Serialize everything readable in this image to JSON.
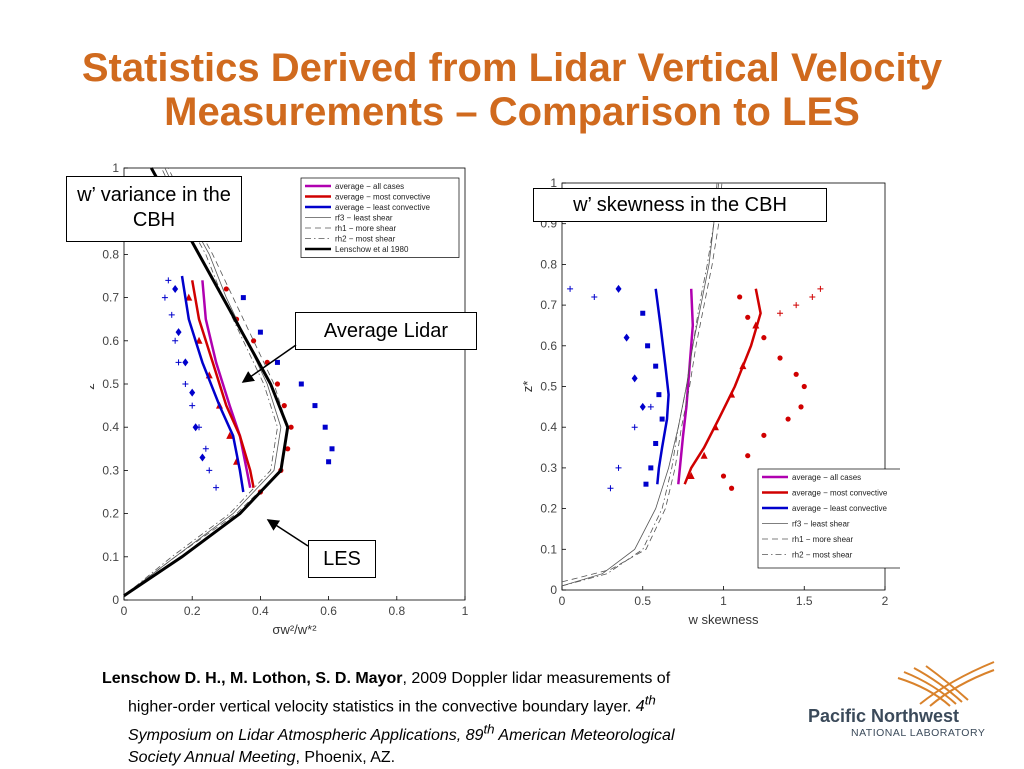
{
  "title": {
    "line1": "Statistics Derived from Lidar Vertical Velocity",
    "line2": "Measurements – Comparison to LES"
  },
  "callouts": {
    "variance": "w’ variance in the CBH",
    "skewness": "w’ skewness in the CBH",
    "avg_lidar": "Average Lidar",
    "les": "LES"
  },
  "reference": {
    "authors": "Lenschow D. H., M. Lothon, S. D. Mayor",
    "part1": ", 2009 Doppler lidar measurements of",
    "part2": "higher-order vertical velocity statistics in the convective boundary layer. ",
    "ordinal": "4",
    "ordinal_sup": "th",
    "part3": "Symposium on Lidar Atmospheric Applications, 89",
    "sup2": "th",
    "part4": " American Meteorological",
    "part5": "Society Annual Meeting",
    "part6": ", Phoenix, AZ."
  },
  "logo": {
    "line1": "Pacific Northwest",
    "line2": "NATIONAL LABORATORY"
  },
  "colors": {
    "title": "#D06A1E",
    "magenta": "#B000B0",
    "red": "#D00000",
    "blue": "#0000CC",
    "logo_orange": "#D9822B",
    "logo_text": "#3B4A5A"
  },
  "chart_data": [
    {
      "type": "line",
      "xlabel": "σw²/w*²",
      "ylabel": "z*",
      "xlim": [
        0,
        1
      ],
      "ylim": [
        0,
        1
      ],
      "xticks": [
        "0",
        "0.2",
        "0.4",
        "0.6",
        "0.8",
        "1"
      ],
      "yticks": [
        "0",
        "0.1",
        "0.2",
        "0.3",
        "0.4",
        "0.5",
        "0.6",
        "0.7",
        "0.8",
        "1"
      ],
      "legend_position": "top-right",
      "series": [
        {
          "name": "average − all cases",
          "style": "solid",
          "color": "#B000B0",
          "points": [
            [
              0.23,
              0.74
            ],
            [
              0.24,
              0.65
            ],
            [
              0.27,
              0.55
            ],
            [
              0.31,
              0.45
            ],
            [
              0.34,
              0.38
            ],
            [
              0.36,
              0.3
            ],
            [
              0.37,
              0.26
            ]
          ]
        },
        {
          "name": "average − most convective",
          "style": "solid",
          "color": "#D00000",
          "points": [
            [
              0.2,
              0.74
            ],
            [
              0.22,
              0.65
            ],
            [
              0.26,
              0.55
            ],
            [
              0.3,
              0.45
            ],
            [
              0.34,
              0.38
            ],
            [
              0.37,
              0.3
            ],
            [
              0.38,
              0.26
            ]
          ]
        },
        {
          "name": "average − least convective",
          "style": "solid",
          "color": "#0000CC",
          "points": [
            [
              0.17,
              0.75
            ],
            [
              0.19,
              0.65
            ],
            [
              0.23,
              0.55
            ],
            [
              0.28,
              0.45
            ],
            [
              0.32,
              0.38
            ],
            [
              0.34,
              0.3
            ],
            [
              0.35,
              0.25
            ]
          ]
        },
        {
          "name": "rf3 − least shear",
          "style": "thin",
          "color": "#555555",
          "points": [
            [
              0,
              0.01
            ],
            [
              0.15,
              0.1
            ],
            [
              0.32,
              0.2
            ],
            [
              0.44,
              0.3
            ],
            [
              0.46,
              0.4
            ],
            [
              0.42,
              0.5
            ],
            [
              0.36,
              0.6
            ],
            [
              0.3,
              0.7
            ],
            [
              0.25,
              0.8
            ],
            [
              0.18,
              0.9
            ],
            [
              0.12,
              1.0
            ]
          ]
        },
        {
          "name": "rh1 − more shear",
          "style": "dashed",
          "color": "#555555",
          "points": [
            [
              0,
              0.01
            ],
            [
              0.15,
              0.1
            ],
            [
              0.33,
              0.2
            ],
            [
              0.46,
              0.3
            ],
            [
              0.48,
              0.4
            ],
            [
              0.44,
              0.5
            ],
            [
              0.38,
              0.6
            ],
            [
              0.32,
              0.7
            ],
            [
              0.26,
              0.8
            ],
            [
              0.19,
              0.9
            ],
            [
              0.13,
              1.0
            ]
          ]
        },
        {
          "name": "rh2 − most shear",
          "style": "dashdot",
          "color": "#555555",
          "points": [
            [
              0,
              0.01
            ],
            [
              0.14,
              0.1
            ],
            [
              0.31,
              0.2
            ],
            [
              0.43,
              0.3
            ],
            [
              0.45,
              0.4
            ],
            [
              0.41,
              0.5
            ],
            [
              0.35,
              0.6
            ],
            [
              0.29,
              0.7
            ],
            [
              0.24,
              0.8
            ],
            [
              0.17,
              0.9
            ],
            [
              0.11,
              1.0
            ]
          ]
        },
        {
          "name": "Lenschow et al 1980",
          "style": "thick",
          "color": "#000000",
          "points": [
            [
              0,
              0.01
            ],
            [
              0.17,
              0.1
            ],
            [
              0.34,
              0.2
            ],
            [
              0.46,
              0.3
            ],
            [
              0.48,
              0.4
            ],
            [
              0.43,
              0.5
            ],
            [
              0.36,
              0.6
            ],
            [
              0.29,
              0.7
            ],
            [
              0.22,
              0.8
            ],
            [
              0.15,
              0.9
            ],
            [
              0.08,
              1.0
            ]
          ]
        }
      ],
      "scatter": [
        {
          "color": "#0000CC",
          "marker": "plus",
          "points": [
            [
              0.13,
              0.74
            ],
            [
              0.12,
              0.7
            ],
            [
              0.14,
              0.66
            ],
            [
              0.15,
              0.6
            ],
            [
              0.16,
              0.55
            ],
            [
              0.18,
              0.5
            ],
            [
              0.2,
              0.45
            ],
            [
              0.22,
              0.4
            ],
            [
              0.24,
              0.35
            ],
            [
              0.25,
              0.3
            ],
            [
              0.27,
              0.26
            ]
          ]
        },
        {
          "color": "#0000CC",
          "marker": "diamond",
          "points": [
            [
              0.15,
              0.72
            ],
            [
              0.16,
              0.62
            ],
            [
              0.18,
              0.55
            ],
            [
              0.2,
              0.48
            ],
            [
              0.21,
              0.4
            ],
            [
              0.23,
              0.33
            ]
          ]
        },
        {
          "color": "#0000CC",
          "marker": "square",
          "points": [
            [
              0.35,
              0.7
            ],
            [
              0.4,
              0.62
            ],
            [
              0.45,
              0.55
            ],
            [
              0.52,
              0.5
            ],
            [
              0.56,
              0.45
            ],
            [
              0.59,
              0.4
            ],
            [
              0.61,
              0.35
            ],
            [
              0.6,
              0.32
            ]
          ]
        },
        {
          "color": "#D00000",
          "marker": "dot",
          "points": [
            [
              0.3,
              0.72
            ],
            [
              0.33,
              0.65
            ],
            [
              0.38,
              0.6
            ],
            [
              0.42,
              0.55
            ],
            [
              0.45,
              0.5
            ],
            [
              0.47,
              0.45
            ],
            [
              0.49,
              0.4
            ],
            [
              0.48,
              0.35
            ],
            [
              0.46,
              0.3
            ],
            [
              0.4,
              0.25
            ]
          ]
        },
        {
          "color": "#D00000",
          "marker": "triangle",
          "points": [
            [
              0.19,
              0.7
            ],
            [
              0.22,
              0.6
            ],
            [
              0.25,
              0.52
            ],
            [
              0.28,
              0.45
            ],
            [
              0.31,
              0.38
            ],
            [
              0.33,
              0.32
            ]
          ]
        }
      ]
    },
    {
      "type": "line",
      "xlabel": "w skewness",
      "ylabel": "z*",
      "xlim": [
        0,
        2
      ],
      "ylim": [
        0,
        1
      ],
      "xticks": [
        "0",
        "0.5",
        "1",
        "1.5",
        "2"
      ],
      "yticks": [
        "0",
        "0.1",
        "0.2",
        "0.3",
        "0.4",
        "0.5",
        "0.6",
        "0.7",
        "0.8",
        "0.9",
        "1"
      ],
      "legend_position": "bottom-right",
      "series": [
        {
          "name": "average − all cases",
          "style": "solid",
          "color": "#B000B0",
          "points": [
            [
              0.8,
              0.74
            ],
            [
              0.81,
              0.65
            ],
            [
              0.79,
              0.55
            ],
            [
              0.77,
              0.45
            ],
            [
              0.75,
              0.38
            ],
            [
              0.73,
              0.3
            ],
            [
              0.72,
              0.26
            ]
          ]
        },
        {
          "name": "average − most convective",
          "style": "solid",
          "color": "#D00000",
          "points": [
            [
              1.2,
              0.74
            ],
            [
              1.23,
              0.68
            ],
            [
              1.17,
              0.6
            ],
            [
              1.07,
              0.5
            ],
            [
              0.97,
              0.42
            ],
            [
              0.88,
              0.35
            ],
            [
              0.8,
              0.3
            ],
            [
              0.76,
              0.26
            ]
          ]
        },
        {
          "name": "average − least convective",
          "style": "solid",
          "color": "#0000CC",
          "points": [
            [
              0.58,
              0.74
            ],
            [
              0.61,
              0.65
            ],
            [
              0.64,
              0.55
            ],
            [
              0.66,
              0.48
            ],
            [
              0.65,
              0.42
            ],
            [
              0.62,
              0.35
            ],
            [
              0.6,
              0.3
            ],
            [
              0.59,
              0.26
            ]
          ]
        },
        {
          "name": "rf3 − least shear",
          "style": "thin",
          "color": "#555555",
          "points": [
            [
              0,
              0.01
            ],
            [
              0.25,
              0.04
            ],
            [
              0.45,
              0.1
            ],
            [
              0.58,
              0.2
            ],
            [
              0.66,
              0.3
            ],
            [
              0.72,
              0.4
            ],
            [
              0.77,
              0.5
            ],
            [
              0.81,
              0.6
            ],
            [
              0.86,
              0.7
            ],
            [
              0.91,
              0.8
            ],
            [
              0.94,
              0.9
            ],
            [
              0.96,
              1.0
            ]
          ]
        },
        {
          "name": "rh1 − more shear",
          "style": "dashed",
          "color": "#555555",
          "points": [
            [
              0,
              0.02
            ],
            [
              0.3,
              0.05
            ],
            [
              0.52,
              0.1
            ],
            [
              0.64,
              0.2
            ],
            [
              0.7,
              0.3
            ],
            [
              0.74,
              0.4
            ],
            [
              0.79,
              0.5
            ],
            [
              0.83,
              0.6
            ],
            [
              0.88,
              0.7
            ],
            [
              0.93,
              0.8
            ],
            [
              0.97,
              0.9
            ],
            [
              0.99,
              1.0
            ]
          ]
        },
        {
          "name": "rh2 − most shear",
          "style": "dashdot",
          "color": "#555555",
          "points": [
            [
              0,
              0.01
            ],
            [
              0.28,
              0.04
            ],
            [
              0.5,
              0.1
            ],
            [
              0.62,
              0.2
            ],
            [
              0.68,
              0.3
            ],
            [
              0.72,
              0.4
            ],
            [
              0.77,
              0.5
            ],
            [
              0.81,
              0.6
            ],
            [
              0.85,
              0.7
            ],
            [
              0.9,
              0.8
            ],
            [
              0.94,
              0.9
            ],
            [
              0.97,
              1.0
            ]
          ]
        }
      ],
      "scatter": [
        {
          "color": "#0000CC",
          "marker": "plus",
          "points": [
            [
              0.05,
              0.74
            ],
            [
              0.2,
              0.72
            ],
            [
              0.3,
              0.25
            ],
            [
              0.35,
              0.3
            ],
            [
              0.45,
              0.4
            ],
            [
              0.55,
              0.45
            ]
          ]
        },
        {
          "color": "#0000CC",
          "marker": "square",
          "points": [
            [
              0.5,
              0.68
            ],
            [
              0.53,
              0.6
            ],
            [
              0.58,
              0.55
            ],
            [
              0.6,
              0.48
            ],
            [
              0.62,
              0.42
            ],
            [
              0.58,
              0.36
            ],
            [
              0.55,
              0.3
            ],
            [
              0.52,
              0.26
            ]
          ]
        },
        {
          "color": "#0000CC",
          "marker": "diamond",
          "points": [
            [
              0.35,
              0.74
            ],
            [
              0.4,
              0.62
            ],
            [
              0.45,
              0.52
            ],
            [
              0.5,
              0.45
            ]
          ]
        },
        {
          "color": "#D00000",
          "marker": "dot",
          "points": [
            [
              1.1,
              0.72
            ],
            [
              1.15,
              0.67
            ],
            [
              1.25,
              0.62
            ],
            [
              1.35,
              0.57
            ],
            [
              1.45,
              0.53
            ],
            [
              1.5,
              0.5
            ],
            [
              1.48,
              0.45
            ],
            [
              1.4,
              0.42
            ],
            [
              1.25,
              0.38
            ],
            [
              1.15,
              0.33
            ],
            [
              1.0,
              0.28
            ],
            [
              1.05,
              0.25
            ]
          ]
        },
        {
          "color": "#D00000",
          "marker": "triangle",
          "points": [
            [
              1.2,
              0.65
            ],
            [
              1.12,
              0.55
            ],
            [
              1.05,
              0.48
            ],
            [
              0.95,
              0.4
            ],
            [
              0.88,
              0.33
            ],
            [
              0.8,
              0.28
            ]
          ]
        },
        {
          "color": "#D00000",
          "marker": "plus",
          "points": [
            [
              1.55,
              0.72
            ],
            [
              1.6,
              0.74
            ],
            [
              1.45,
              0.7
            ],
            [
              1.35,
              0.68
            ]
          ]
        }
      ]
    }
  ]
}
